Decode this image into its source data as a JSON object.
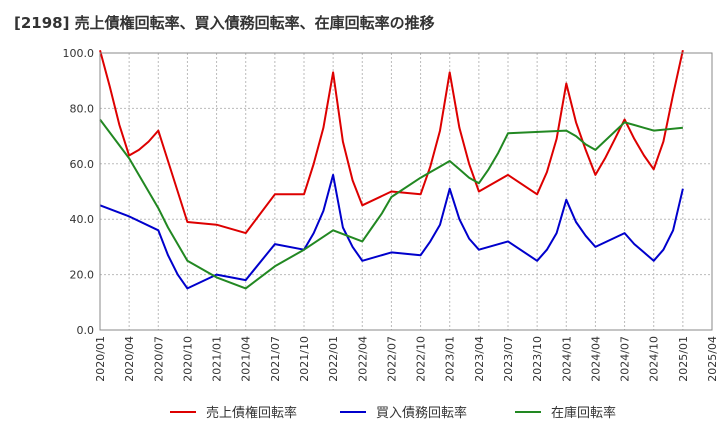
{
  "chart_data": {
    "type": "line",
    "title": "[2198]  売上債権回転率、買入債務回転率、在庫回転率の推移",
    "ylim": [
      0,
      100
    ],
    "yticks": [
      "0.0",
      "20.0",
      "40.0",
      "60.0",
      "80.0",
      "100.0"
    ],
    "xticks": [
      "2020/01",
      "2020/04",
      "2020/07",
      "2020/10",
      "2021/01",
      "2021/04",
      "2021/07",
      "2021/10",
      "2022/01",
      "2022/04",
      "2022/07",
      "2022/10",
      "2023/01",
      "2023/04",
      "2023/07",
      "2023/10",
      "2024/01",
      "2024/04",
      "2024/07",
      "2024/10",
      "2025/01",
      "2025/04"
    ],
    "x_start": "2020/01",
    "series": [
      {
        "name": "売上債権回転率",
        "color": "#dd0000",
        "values": [
          101,
          88,
          74,
          63,
          65,
          68,
          72,
          61,
          50,
          39,
          null,
          null,
          38,
          null,
          null,
          35,
          null,
          null,
          49,
          null,
          null,
          49,
          60,
          73,
          93,
          68,
          54,
          45,
          null,
          null,
          50,
          null,
          null,
          49,
          59,
          72,
          93,
          73,
          60,
          50,
          null,
          null,
          56,
          null,
          null,
          49,
          57,
          69,
          89,
          75,
          65,
          56,
          62,
          69,
          76,
          69,
          63,
          58,
          68,
          85,
          101
        ]
      },
      {
        "name": "買入債務回転率",
        "color": "#0000cc",
        "values": [
          45,
          null,
          null,
          41,
          null,
          null,
          36,
          27,
          20,
          15,
          null,
          null,
          20,
          null,
          null,
          18,
          null,
          null,
          31,
          null,
          null,
          29,
          35,
          43,
          56,
          37,
          30,
          25,
          null,
          null,
          28,
          null,
          null,
          27,
          32,
          38,
          51,
          40,
          33,
          29,
          null,
          null,
          32,
          null,
          null,
          25,
          29,
          35,
          47,
          39,
          34,
          30,
          null,
          null,
          35,
          31,
          28,
          25,
          29,
          36,
          51
        ]
      },
      {
        "name": "在庫回転率",
        "color": "#228822",
        "values": [
          76,
          null,
          null,
          62,
          null,
          null,
          44,
          37,
          31,
          25,
          null,
          null,
          19,
          null,
          null,
          15,
          null,
          null,
          23,
          null,
          null,
          29,
          null,
          null,
          36,
          null,
          null,
          32,
          37,
          42,
          48,
          null,
          null,
          55,
          57,
          59,
          61,
          58,
          55,
          53,
          58,
          64,
          71,
          null,
          null,
          null,
          null,
          null,
          72,
          70,
          67,
          65,
          null,
          null,
          75,
          74,
          73,
          72,
          null,
          null,
          73
        ]
      }
    ]
  }
}
